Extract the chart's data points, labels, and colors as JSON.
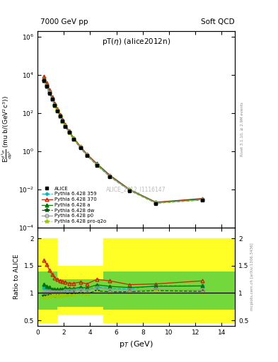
{
  "title_main": "pT($\\eta$) (alice2012n)",
  "header_left": "7000 GeV pp",
  "header_right": "Soft QCD",
  "watermark": "ALICE_2012_I1116147",
  "right_label_top": "Rivet 3.1.10, ≥ 2.9M events",
  "right_label_bot": "mcplots.cern.ch [arXiv:1306.3436]",
  "xlabel": "p$_{T}$ (GeV)",
  "ylabel_main": "E$\\frac{d^3\\sigma}{dp^3}$ (mu b/(GeV$^2$c$^3$))",
  "ylabel_ratio": "Ratio to ALICE",
  "alice_pt": [
    0.5,
    0.7,
    0.9,
    1.1,
    1.3,
    1.5,
    1.7,
    1.9,
    2.1,
    2.4,
    2.75,
    3.25,
    3.75,
    4.5,
    5.5,
    7.0,
    9.0,
    12.5
  ],
  "alice_y": [
    5000,
    2500,
    1100,
    520,
    250,
    130,
    68,
    37,
    20,
    9.5,
    4.2,
    1.5,
    0.6,
    0.18,
    0.045,
    0.0085,
    0.0018,
    0.0027
  ],
  "alice_yerr": [
    400,
    200,
    80,
    40,
    20,
    10,
    5,
    3,
    1.5,
    0.7,
    0.3,
    0.12,
    0.05,
    0.015,
    0.004,
    0.001,
    0.0003,
    0.0004
  ],
  "py359_pt": [
    0.5,
    0.7,
    0.9,
    1.1,
    1.3,
    1.5,
    1.7,
    1.9,
    2.1,
    2.4,
    2.75,
    3.25,
    3.75,
    4.5,
    5.5,
    7.0,
    9.0,
    12.5
  ],
  "py359_y": [
    5500,
    2700,
    1180,
    545,
    260,
    136,
    71,
    38.5,
    21.2,
    10.0,
    4.45,
    1.62,
    0.64,
    0.2,
    0.049,
    0.0091,
    0.00205,
    0.00305
  ],
  "py370_pt": [
    0.5,
    0.7,
    0.9,
    1.1,
    1.3,
    1.5,
    1.7,
    1.9,
    2.1,
    2.4,
    2.75,
    3.25,
    3.75,
    4.5,
    5.5,
    7.0,
    9.0,
    12.5
  ],
  "py370_y": [
    8000,
    3800,
    1560,
    700,
    320,
    162,
    83,
    45,
    24,
    11.2,
    4.95,
    1.8,
    0.7,
    0.225,
    0.055,
    0.0098,
    0.0021,
    0.0033
  ],
  "pya_pt": [
    0.5,
    0.7,
    0.9,
    1.1,
    1.3,
    1.5,
    1.7,
    1.9,
    2.1,
    2.4,
    2.75,
    3.25,
    3.75,
    4.5,
    5.5,
    7.0,
    9.0,
    12.5
  ],
  "pya_y": [
    5800,
    2820,
    1220,
    555,
    267,
    139,
    72.5,
    39.5,
    21.8,
    10.3,
    4.55,
    1.66,
    0.655,
    0.207,
    0.0505,
    0.00935,
    0.00202,
    0.00305
  ],
  "pydw_pt": [
    0.5,
    0.7,
    0.9,
    1.1,
    1.3,
    1.5,
    1.7,
    1.9,
    2.1,
    2.4,
    2.75,
    3.25,
    3.75,
    4.5,
    5.5,
    7.0,
    9.0,
    12.5
  ],
  "pydw_y": [
    4800,
    2400,
    1060,
    502,
    240,
    126,
    65.5,
    35.8,
    19.7,
    9.35,
    4.15,
    1.5,
    0.595,
    0.187,
    0.046,
    0.0087,
    0.00188,
    0.00278
  ],
  "pyp0_pt": [
    0.5,
    0.7,
    0.9,
    1.1,
    1.3,
    1.5,
    1.7,
    1.9,
    2.1,
    2.4,
    2.75,
    3.25,
    3.75,
    4.5,
    5.5,
    7.0,
    9.0,
    12.5
  ],
  "pyp0_y": [
    5100,
    2560,
    1130,
    533,
    254,
    133,
    69,
    37.6,
    20.9,
    9.9,
    4.38,
    1.59,
    0.625,
    0.197,
    0.0477,
    0.00895,
    0.00193,
    0.00285
  ],
  "pyproq2o_pt": [
    0.5,
    0.7,
    0.9,
    1.1,
    1.3,
    1.5,
    1.7,
    1.9,
    2.1,
    2.4,
    2.75,
    3.25,
    3.75,
    4.5,
    5.5,
    7.0,
    9.0,
    12.5
  ],
  "pyproq2o_y": [
    4600,
    2320,
    1040,
    495,
    237,
    124,
    64.5,
    35.2,
    19.4,
    9.2,
    4.08,
    1.48,
    0.585,
    0.184,
    0.0452,
    0.00858,
    0.00185,
    0.00272
  ],
  "yellow_bins": [
    0.0,
    1.5,
    5.0,
    8.0,
    15.0
  ],
  "yellow_lo": [
    0.45,
    0.6,
    0.45,
    0.45
  ],
  "yellow_hi": [
    2.0,
    1.5,
    2.0,
    2.0
  ],
  "green_bins": [
    0.0,
    1.5,
    5.0,
    8.0,
    15.0
  ],
  "green_lo": [
    0.7,
    0.75,
    0.7,
    0.7
  ],
  "green_hi": [
    1.4,
    1.25,
    1.4,
    1.4
  ],
  "color_alice": "#000000",
  "color_py359": "#00bbbb",
  "color_py370": "#cc2200",
  "color_pya": "#007700",
  "color_pydw": "#005500",
  "color_pyp0": "#999999",
  "color_pyproq2o": "#99cc00",
  "ylim_main": [
    0.0001,
    2000000.0
  ],
  "ylim_ratio": [
    0.4,
    2.2
  ],
  "xlim": [
    0,
    15
  ]
}
